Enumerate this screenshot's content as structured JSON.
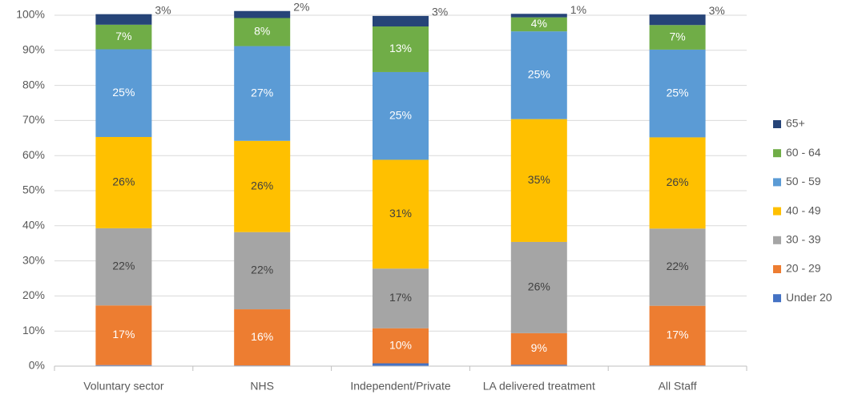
{
  "chart_data": {
    "type": "stacked_bar",
    "categories": [
      "Voluntary sector",
      "NHS",
      "Independent/Private",
      "LA delivered treatment",
      "All Staff"
    ],
    "series": [
      {
        "name": "Under 20",
        "color": "#4472c4",
        "values": [
          0.3,
          0.2,
          0.8,
          0.4,
          0.2
        ]
      },
      {
        "name": "20 - 29",
        "color": "#ed7d31",
        "values": [
          17,
          16,
          10,
          9,
          17
        ],
        "value_labels": [
          "17%",
          "16%",
          "10%",
          "9%",
          "17%"
        ]
      },
      {
        "name": "30 - 39",
        "color": "#a5a5a5",
        "values": [
          22,
          22,
          17,
          26,
          22
        ],
        "value_labels": [
          "22%",
          "22%",
          "17%",
          "26%",
          "22%"
        ]
      },
      {
        "name": "40 - 49",
        "color": "#ffc000",
        "values": [
          26,
          26,
          31,
          35,
          26
        ],
        "value_labels": [
          "26%",
          "26%",
          "31%",
          "35%",
          "26%"
        ]
      },
      {
        "name": "50 - 59",
        "color": "#5b9bd5",
        "values": [
          25,
          27,
          25,
          25,
          25
        ],
        "value_labels": [
          "25%",
          "27%",
          "25%",
          "25%",
          "25%"
        ]
      },
      {
        "name": "60 - 64",
        "color": "#70ad47",
        "values": [
          7,
          8,
          13,
          4,
          7
        ],
        "value_labels": [
          "7%",
          "8%",
          "13%",
          "4%",
          "7%"
        ]
      },
      {
        "name": "65+",
        "color": "#264478",
        "values": [
          3,
          2,
          3,
          1,
          3
        ],
        "value_labels": [
          "3%",
          "2%",
          "3%",
          "1%",
          "3%"
        ]
      }
    ],
    "ylim": [
      0,
      100
    ],
    "yticks": [
      {
        "value": 0,
        "label": "0%"
      },
      {
        "value": 10,
        "label": "10%"
      },
      {
        "value": 20,
        "label": "20%"
      },
      {
        "value": 30,
        "label": "30%"
      },
      {
        "value": 40,
        "label": "40%"
      },
      {
        "value": 50,
        "label": "50%"
      },
      {
        "value": 60,
        "label": "60%"
      },
      {
        "value": 70,
        "label": "70%"
      },
      {
        "value": 80,
        "label": "80%"
      },
      {
        "value": 90,
        "label": "90%"
      },
      {
        "value": 100,
        "label": "100%"
      }
    ],
    "grid": true,
    "legend": "right"
  }
}
